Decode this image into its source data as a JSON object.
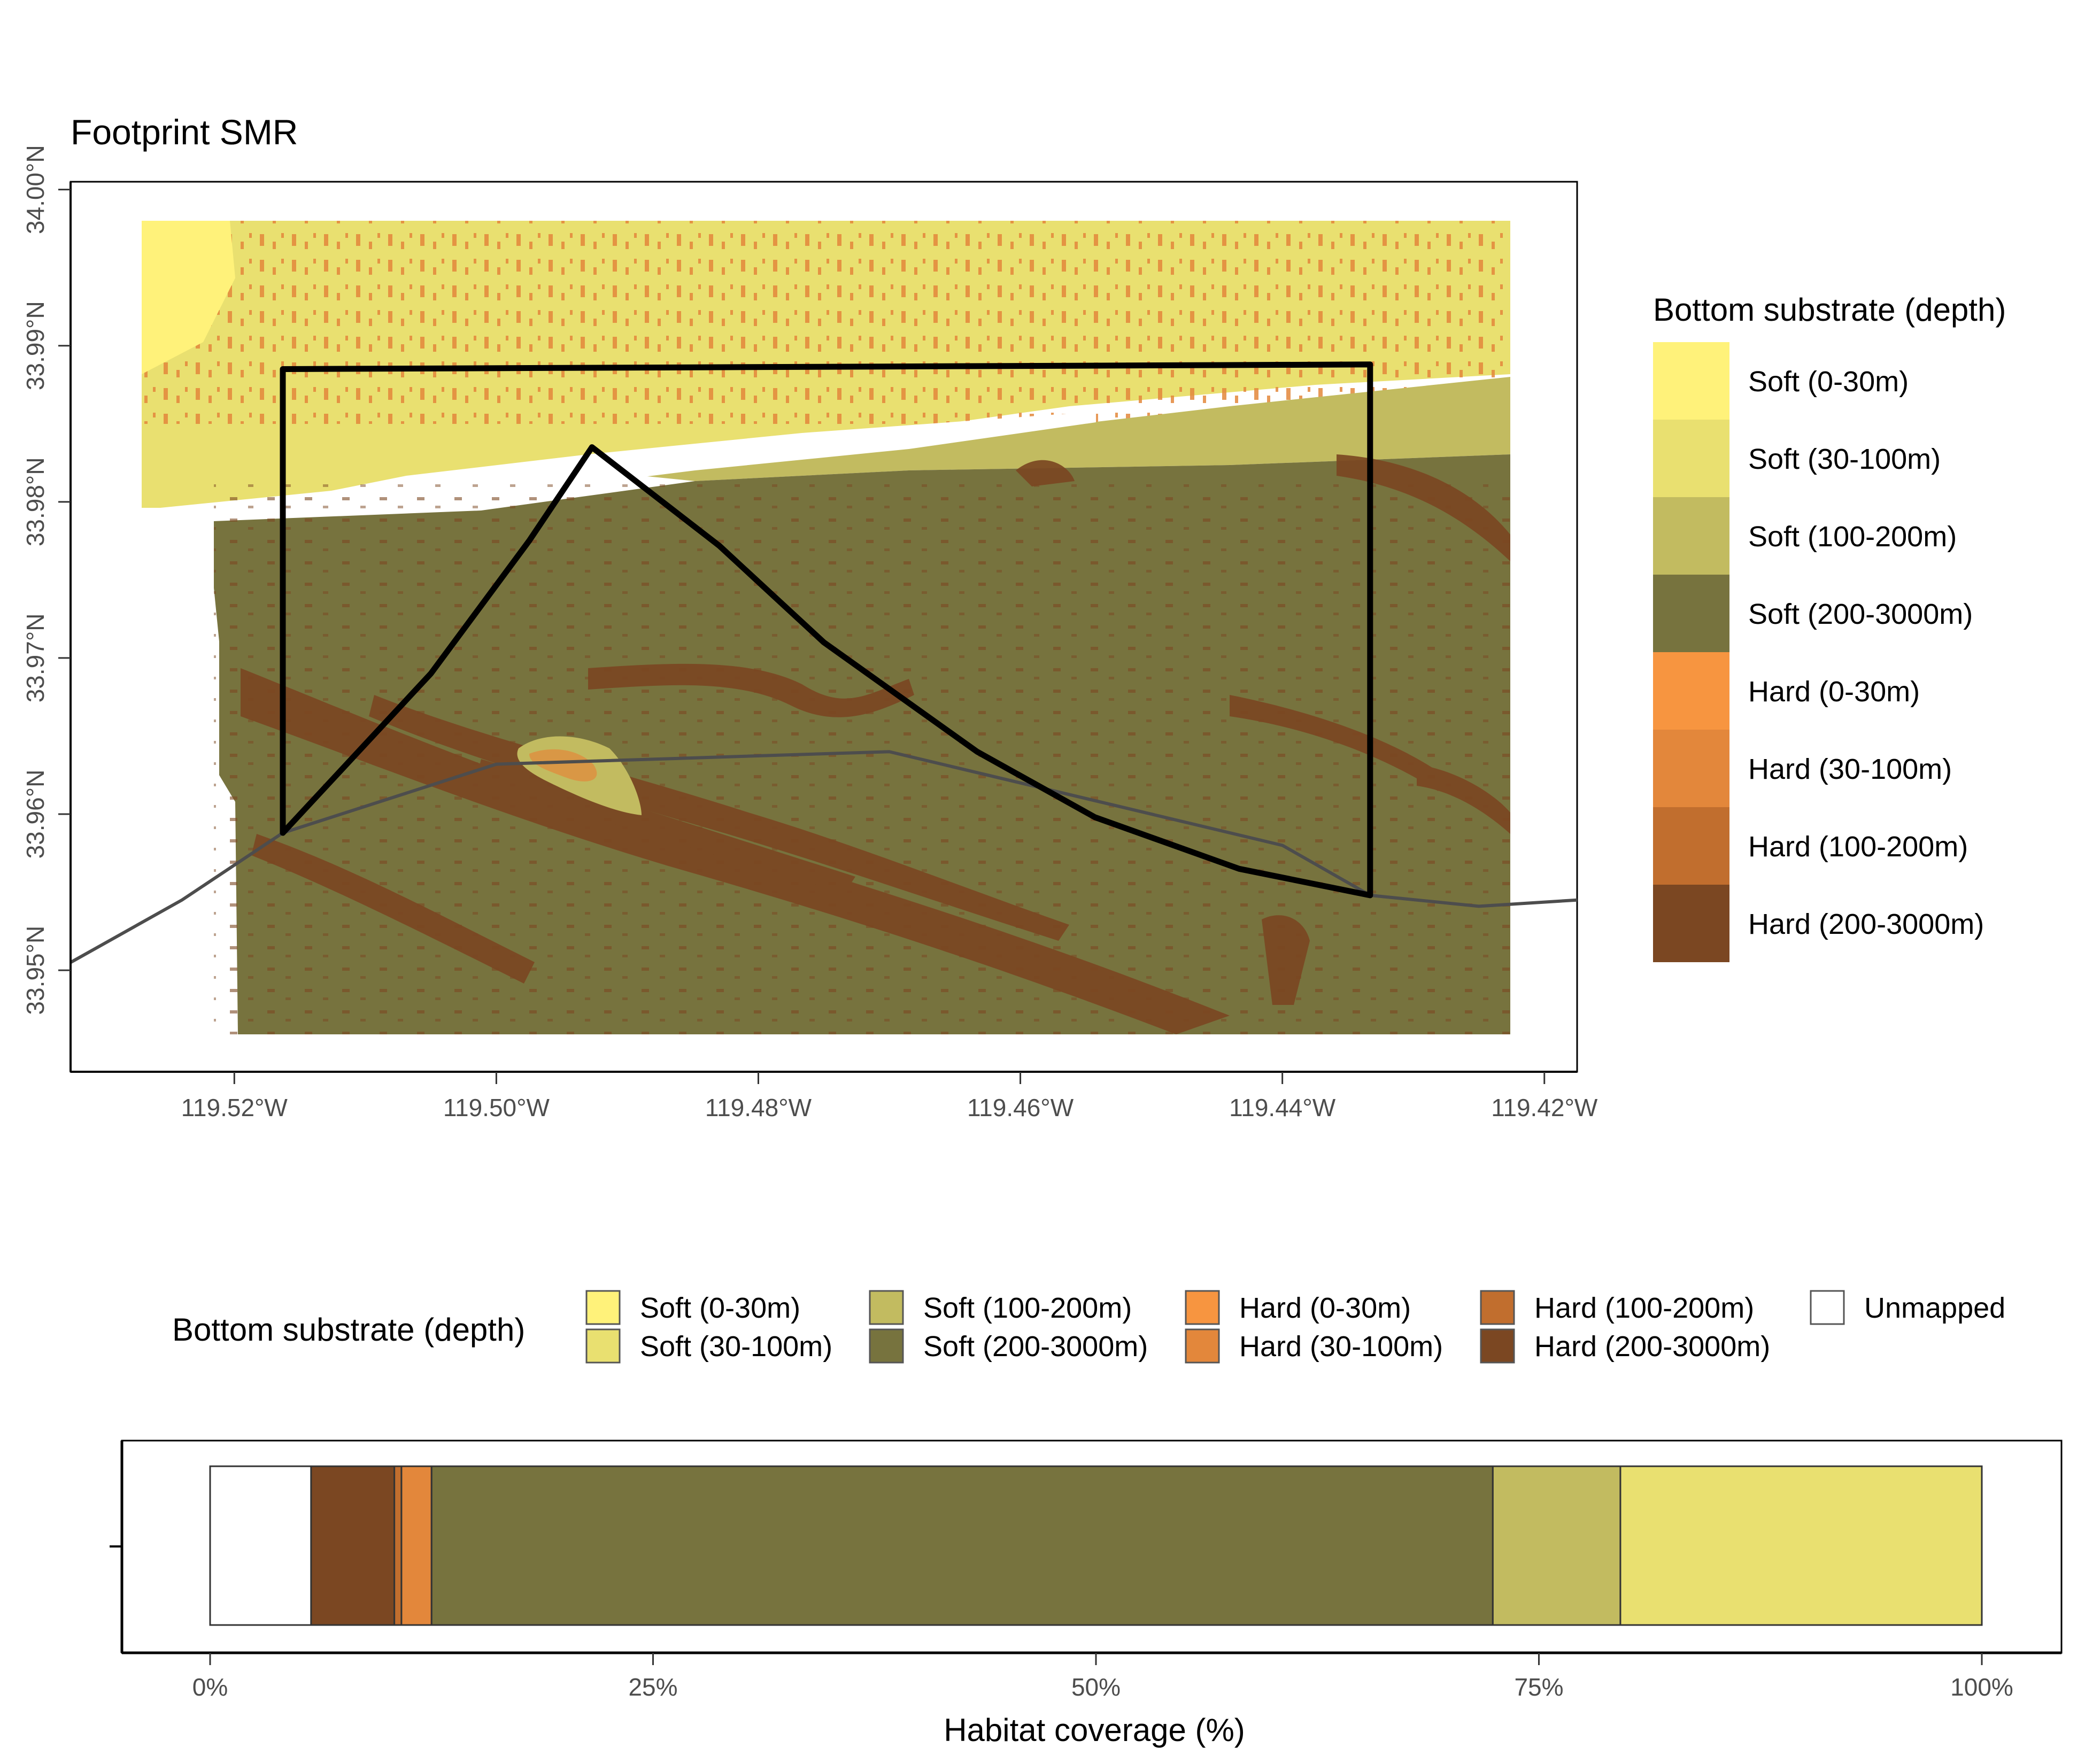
{
  "map": {
    "title": "Footprint SMR",
    "x_ticks": [
      "119.52°W",
      "119.50°W",
      "119.48°W",
      "119.46°W",
      "119.44°W",
      "119.42°W"
    ],
    "y_ticks": [
      "33.95°N",
      "33.96°N",
      "33.97°N",
      "33.98°N",
      "33.99°N",
      "34.00°N"
    ],
    "x_range": [
      -119.5325,
      -119.4175
    ],
    "y_range": [
      33.9435,
      34.0005
    ],
    "footprint_boundary": [
      [
        -119.5163,
        33.9588
      ],
      [
        -119.5163,
        33.9885
      ],
      [
        -119.4333,
        33.9888
      ],
      [
        -119.4333,
        33.9548
      ],
      [
        -119.4433,
        33.9565
      ],
      [
        -119.4543,
        33.9598
      ],
      [
        -119.4633,
        33.964
      ],
      [
        -119.475,
        33.971
      ],
      [
        -119.483,
        33.9772
      ],
      [
        -119.4927,
        33.9835
      ],
      [
        -119.4975,
        33.9775
      ],
      [
        -119.505,
        33.969
      ],
      [
        -119.5163,
        33.9588
      ]
    ],
    "coastline": [
      [
        -119.5325,
        33.9505
      ],
      [
        -119.524,
        33.9545
      ],
      [
        -119.5163,
        33.9588
      ],
      [
        -119.5,
        33.9632
      ],
      [
        -119.47,
        33.964
      ],
      [
        -119.44,
        33.958
      ],
      [
        -119.4333,
        33.9548
      ],
      [
        -119.425,
        33.9541
      ],
      [
        -119.4175,
        33.9545
      ]
    ]
  },
  "legend_right": {
    "title": "Bottom substrate (depth)",
    "items": [
      {
        "label": "Soft (0-30m)",
        "color": "#FFF27A"
      },
      {
        "label": "Soft (30-100m)",
        "color": "#E9E070"
      },
      {
        "label": "Soft (100-200m)",
        "color": "#C2BB60"
      },
      {
        "label": "Soft (200-3000m)",
        "color": "#77733E"
      },
      {
        "label": "Hard (0-30m)",
        "color": "#F79540"
      },
      {
        "label": "Hard (30-100m)",
        "color": "#E3873B"
      },
      {
        "label": "Hard (100-200m)",
        "color": "#C16E2E"
      },
      {
        "label": "Hard (200-3000m)",
        "color": "#7B4722"
      }
    ]
  },
  "legend_bottom": {
    "title": "Bottom substrate (depth)",
    "items": [
      {
        "label": "Soft (0-30m)",
        "color": "#FFF27A"
      },
      {
        "label": "Soft (30-100m)",
        "color": "#E9E070"
      },
      {
        "label": "Soft (100-200m)",
        "color": "#C2BB60"
      },
      {
        "label": "Soft (200-3000m)",
        "color": "#77733E"
      },
      {
        "label": "Hard (0-30m)",
        "color": "#F79540"
      },
      {
        "label": "Hard (30-100m)",
        "color": "#E3873B"
      },
      {
        "label": "Hard (100-200m)",
        "color": "#C16E2E"
      },
      {
        "label": "Hard (200-3000m)",
        "color": "#7B4722"
      },
      {
        "label": "Unmapped",
        "color": "#FFFFFF"
      }
    ]
  },
  "chart_data": {
    "type": "bar",
    "orientation": "horizontal-stacked",
    "xlabel": "Habitat coverage (%)",
    "x_ticks": [
      "0%",
      "25%",
      "50%",
      "75%",
      "100%"
    ],
    "xlim": [
      0,
      100
    ],
    "segments": [
      {
        "name": "Unmapped",
        "value": 5.7,
        "color": "#FFFFFF"
      },
      {
        "name": "Hard (200-3000m)",
        "value": 4.7,
        "color": "#7B4722"
      },
      {
        "name": "Hard (100-200m)",
        "value": 0.4,
        "color": "#C16E2E"
      },
      {
        "name": "Hard (30-100m)",
        "value": 1.7,
        "color": "#E3873B"
      },
      {
        "name": "Soft (200-3000m)",
        "value": 59.9,
        "color": "#77733E"
      },
      {
        "name": "Soft (100-200m)",
        "value": 7.2,
        "color": "#C2BB60"
      },
      {
        "name": "Soft (30-100m)",
        "value": 20.4,
        "color": "#E9E070"
      }
    ]
  }
}
